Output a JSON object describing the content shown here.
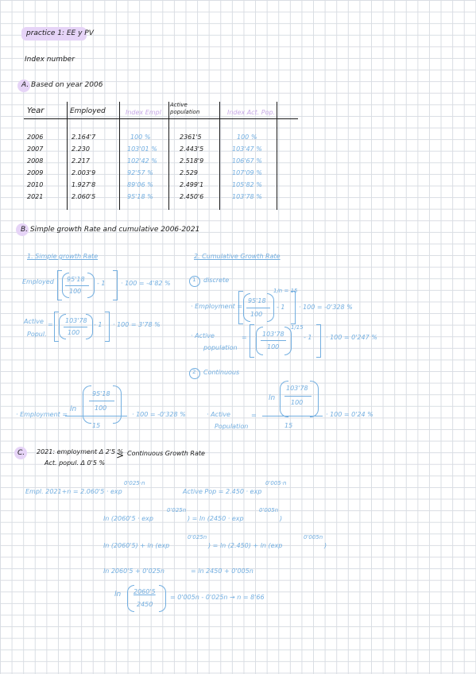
{
  "title": "practice 1: EE y PV",
  "subtitle": "Index number",
  "sectionA": {
    "heading": "A. Based on year 2006",
    "headers": [
      "Year",
      "Employed",
      "Index Empl",
      "Active population",
      "Index Act. Pop."
    ],
    "rows": [
      [
        "2006",
        "2.164'7",
        "100 %",
        "2361'5",
        "100 %"
      ],
      [
        "2007",
        "2.230",
        "103'01 %",
        "2.443'5",
        "103'47 %"
      ],
      [
        "2008",
        "2.217",
        "102'42 %",
        "2.518'9",
        "106'67 %"
      ],
      [
        "2009",
        "2.003'9",
        "92'57 %",
        "2.529",
        "107'09 %"
      ],
      [
        "2010",
        "1.927'8",
        "89'06 %",
        "2.499'1",
        "105'82 %"
      ],
      [
        "2021",
        "2.060'5",
        "95'18 %",
        "2.450'6",
        "103'78 %"
      ]
    ]
  },
  "sectionB": {
    "heading": "B. Simple growth Rate and cumulative 2006-2021",
    "simple": {
      "title": "1. Simple growth Rate",
      "employed_label": "Employed",
      "employed_num": "95'18",
      "employed_den": "100",
      "employed_minus": "- 1",
      "employed_result": "· 100 = -4'82 %",
      "active_label_1": "Active",
      "active_label_2": "Popul.",
      "active_num": "103'78",
      "active_den": "100",
      "active_minus": "- 1",
      "active_result": "· 100 = 3'78 %"
    },
    "cumulative": {
      "title": "2. Cumulative Growth Rate",
      "discrete_num": "1",
      "discrete_label": "discrete",
      "emp_label": "· Employment =",
      "emp_num": "95'18",
      "emp_den": "100",
      "emp_exp": "1/n = 15",
      "emp_minus": "- 1",
      "emp_result": "· 100 = -0'328 %",
      "act_label_1": "· Active",
      "act_label_2": "population",
      "act_num": "103'78",
      "act_den": "100",
      "act_exp": "1/15",
      "act_minus": "- 1",
      "act_result": "· 100 = 0'247 %",
      "continuous_num": "2",
      "continuous_label": "Continuous",
      "cont_emp_label": "· Employment =",
      "cont_emp_ln": "ln",
      "cont_emp_num": "95'18",
      "cont_emp_den": "100",
      "cont_emp_div": "15",
      "cont_emp_result": "· 100 = -0'328 %",
      "cont_act_label_1": "· Active",
      "cont_act_label_2": "Population",
      "cont_act_ln": "ln",
      "cont_act_num": "103'78",
      "cont_act_den": "100",
      "cont_act_div": "15",
      "cont_act_result": "· 100 = 0'24 %"
    }
  },
  "sectionC": {
    "letter": "C.",
    "line1": "2021: employment Δ 2'5 %",
    "line2": "Act. popul. Δ 0'5 %",
    "arrow_note": "Continuous Growth Rate",
    "eq1_left": "Empl. 2021+n = 2.060'5 · exp",
    "eq1_left_exp": "0'025·n",
    "eq1_right": "Active Pop = 2.450 · exp",
    "eq1_right_exp": "0'005·n",
    "eq2": "ln (2060'5 · exp",
    "eq2_exp": "0'025n",
    "eq2_mid": ") = ln (2450 · exp",
    "eq2_exp2": "0'005n",
    "eq2_end": ")",
    "eq3_a": "ln (2060'5) + ln (exp",
    "eq3_exp": "0'025n",
    "eq3_b": ") = ln (2.450) + ln (exp",
    "eq3_exp2": "0'005n",
    "eq3_end": ")",
    "eq4_left": "ln 2060'5 + 0'025n",
    "eq4_right": "= ln 2450 + 0'005n",
    "eq5_ln": "ln",
    "eq5_num": "2060'5",
    "eq5_den": "2450",
    "eq5_rest": "= 0'005n - 0'025n → n = 8'66"
  }
}
